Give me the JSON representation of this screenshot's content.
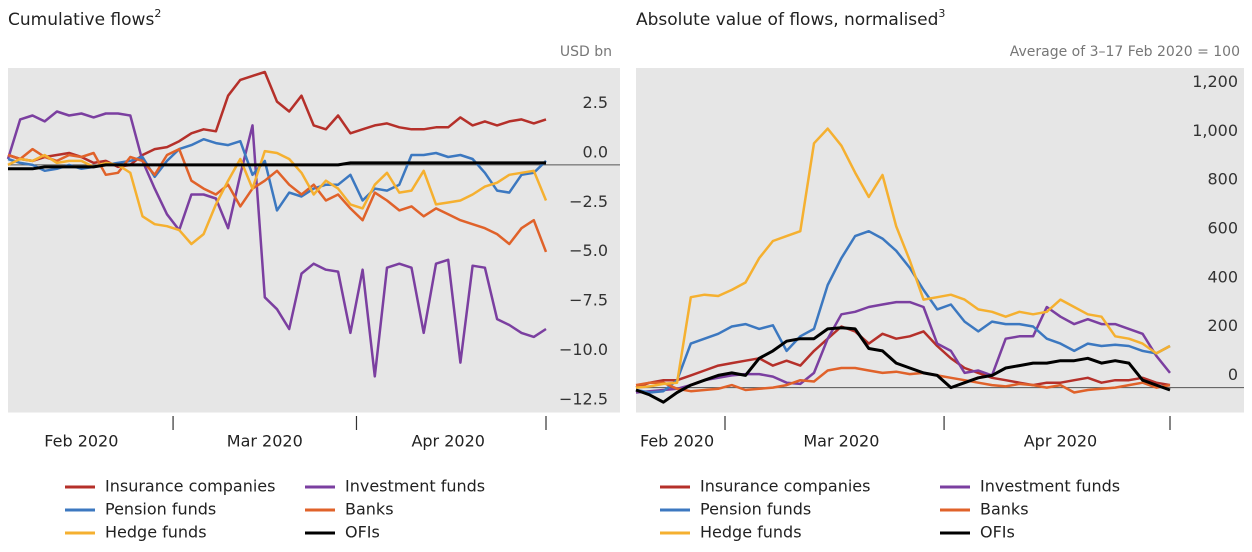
{
  "chart_data": [
    {
      "type": "line",
      "title": "Cumulative flows",
      "title_note": "2",
      "unit": "USD bn",
      "categories": [
        null,
        null,
        null,
        null,
        null,
        null,
        "Feb 2020",
        null,
        null,
        null,
        null,
        null,
        null,
        null,
        null,
        null,
        null,
        null,
        null,
        null,
        null,
        "Mar 2020",
        null,
        null,
        null,
        null,
        null,
        null,
        null,
        null,
        null,
        null,
        null,
        null,
        null,
        null,
        "Apr 2020",
        null,
        null,
        null,
        null,
        null,
        null,
        null,
        null
      ],
      "ylim": [
        -12.5,
        4.8
      ],
      "yticks": [
        {
          "value": -12.5,
          "label": "−12.5"
        },
        {
          "value": -10,
          "label": "−10.0"
        },
        {
          "value": -7.5,
          "label": "−7.5"
        },
        {
          "value": -5,
          "label": "−5.0"
        },
        {
          "value": -2.5,
          "label": "−2.5"
        },
        {
          "value": 0,
          "label": "0.0"
        },
        2.5
      ],
      "zero_line": true,
      "series": [
        {
          "name": "Insurance companies",
          "color": "#b5302a",
          "values": [
            0.5,
            0.3,
            0.2,
            0.4,
            0.5,
            0.6,
            0.4,
            0.1,
            0.2,
            -0.1,
            0.0,
            0.5,
            0.8,
            0.9,
            1.2,
            1.6,
            1.8,
            1.7,
            3.5,
            4.3,
            4.5,
            4.7,
            3.2,
            2.7,
            3.5,
            2.0,
            1.8,
            2.5,
            1.6,
            1.8,
            2.0,
            2.1,
            1.9,
            1.8,
            1.8,
            1.9,
            1.9,
            2.4,
            2.0,
            2.2,
            2.0,
            2.2,
            2.3,
            2.1,
            2.3
          ]
        },
        {
          "name": "Investment funds",
          "color": "#7b3fa0",
          "values": [
            0.3,
            2.3,
            2.5,
            2.2,
            2.7,
            2.5,
            2.6,
            2.4,
            2.6,
            2.6,
            2.5,
            0.2,
            -1.2,
            -2.5,
            -3.3,
            -1.5,
            -1.5,
            -1.7,
            -3.2,
            -0.5,
            2.0,
            -6.7,
            -7.3,
            -8.3,
            -5.5,
            -5.0,
            -5.3,
            -5.4,
            -8.5,
            -5.3,
            -10.7,
            -5.2,
            -5.0,
            -5.2,
            -8.5,
            -5.0,
            -4.8,
            -10.0,
            -5.1,
            -5.2,
            -7.8,
            -8.1,
            -8.5,
            -8.7,
            -8.3
          ]
        },
        {
          "name": "Pension funds",
          "color": "#3c78c0",
          "values": [
            0.3,
            0.1,
            0.0,
            -0.3,
            -0.2,
            0.0,
            -0.2,
            -0.1,
            0.0,
            0.1,
            0.2,
            0.4,
            -0.6,
            0.2,
            0.8,
            1.0,
            1.3,
            1.1,
            1.0,
            1.2,
            -0.5,
            0.2,
            -2.3,
            -1.4,
            -1.6,
            -1.2,
            -1.0,
            -1.0,
            -0.5,
            -1.8,
            -1.2,
            -1.3,
            -1.0,
            0.5,
            0.5,
            0.6,
            0.4,
            0.5,
            0.3,
            -0.4,
            -1.3,
            -1.4,
            -0.5,
            -0.4,
            0.2
          ]
        },
        {
          "name": "Banks",
          "color": "#e0622a",
          "values": [
            0.5,
            0.3,
            0.8,
            0.4,
            0.2,
            0.5,
            0.4,
            0.6,
            -0.5,
            -0.4,
            0.4,
            0.2,
            -0.5,
            0.5,
            0.8,
            -0.8,
            -1.2,
            -1.5,
            -1.0,
            -2.1,
            -1.2,
            -0.8,
            -0.3,
            -1.0,
            -1.5,
            -1.0,
            -1.8,
            -1.5,
            -2.2,
            -2.8,
            -1.4,
            -1.8,
            -2.3,
            -2.1,
            -2.6,
            -2.2,
            -2.5,
            -2.8,
            -3.0,
            -3.2,
            -3.5,
            -4.0,
            -3.2,
            -2.8,
            -4.4
          ]
        },
        {
          "name": "Hedge funds",
          "color": "#f5b030",
          "values": [
            0.0,
            0.3,
            0.2,
            0.5,
            0.1,
            0.2,
            0.2,
            -0.1,
            0.1,
            0.0,
            -0.4,
            -2.6,
            -3.0,
            -3.1,
            -3.3,
            -4.0,
            -3.5,
            -2.0,
            -0.8,
            0.3,
            -1.2,
            0.7,
            0.6,
            0.3,
            -0.4,
            -1.5,
            -0.8,
            -1.2,
            -2.0,
            -2.2,
            -1.0,
            -0.4,
            -1.4,
            -1.3,
            -0.3,
            -2.0,
            -1.9,
            -1.8,
            -1.5,
            -1.1,
            -0.9,
            -0.5,
            -0.4,
            -0.3,
            -1.8
          ]
        },
        {
          "name": "OFIs",
          "color": "#000000",
          "values": [
            -0.2,
            -0.2,
            -0.2,
            -0.1,
            -0.1,
            -0.1,
            -0.1,
            -0.1,
            0.0,
            0.0,
            0.0,
            0.0,
            0.0,
            0.0,
            0.0,
            0.0,
            0.0,
            0.0,
            0.0,
            0.0,
            0.0,
            0.0,
            0.0,
            0.0,
            0.0,
            0.0,
            0.0,
            0.0,
            0.1,
            0.1,
            0.1,
            0.1,
            0.1,
            0.1,
            0.1,
            0.1,
            0.1,
            0.1,
            0.1,
            0.1,
            0.1,
            0.1,
            0.1,
            0.1,
            0.1
          ]
        }
      ]
    },
    {
      "type": "line",
      "title": "Absolute value of flows, normalised",
      "title_note": "3",
      "unit": "Average of 3–17 Feb 2020 = 100",
      "categories": [
        null,
        null,
        null,
        "Feb 2020",
        null,
        null,
        null,
        null,
        null,
        null,
        null,
        null,
        null,
        null,
        null,
        "Mar 2020",
        null,
        null,
        null,
        null,
        null,
        null,
        null,
        null,
        null,
        null,
        null,
        null,
        null,
        null,
        null,
        "Apr 2020",
        null,
        null,
        null,
        null,
        null,
        null,
        null,
        null
      ],
      "ylim": [
        -100,
        1300
      ],
      "yticks": [
        0,
        200,
        400,
        600,
        800,
        {
          "value": 1000,
          "label": "1,000"
        },
        {
          "value": 1200,
          "label": "1,200"
        }
      ],
      "zero_line": true,
      "series": [
        {
          "name": "Insurance companies",
          "color": "#b5302a",
          "values": [
            0,
            20,
            30,
            30,
            50,
            70,
            90,
            100,
            110,
            120,
            90,
            110,
            90,
            150,
            200,
            250,
            230,
            180,
            220,
            200,
            210,
            230,
            170,
            120,
            80,
            60,
            40,
            30,
            20,
            10,
            20,
            20,
            30,
            40,
            20,
            30,
            30,
            40,
            20,
            10
          ]
        },
        {
          "name": "Investment funds",
          "color": "#7b3fa0",
          "values": [
            -20,
            -15,
            -10,
            -5,
            10,
            30,
            40,
            50,
            55,
            55,
            45,
            20,
            15,
            60,
            200,
            300,
            310,
            330,
            340,
            350,
            350,
            330,
            180,
            150,
            60,
            70,
            50,
            200,
            210,
            210,
            330,
            290,
            260,
            280,
            260,
            260,
            240,
            220,
            130,
            60
          ]
        },
        {
          "name": "Pension funds",
          "color": "#3c78c0",
          "values": [
            -10,
            -20,
            -15,
            30,
            180,
            200,
            220,
            250,
            260,
            240,
            255,
            150,
            210,
            240,
            420,
            530,
            620,
            640,
            610,
            560,
            490,
            400,
            320,
            340,
            270,
            230,
            270,
            260,
            260,
            250,
            200,
            180,
            150,
            180,
            170,
            175,
            170,
            150,
            140,
            170
          ]
        },
        {
          "name": "Banks",
          "color": "#e0622a",
          "values": [
            10,
            20,
            20,
            -5,
            -15,
            -10,
            -5,
            10,
            -10,
            -5,
            0,
            10,
            30,
            25,
            70,
            80,
            80,
            70,
            60,
            65,
            55,
            60,
            50,
            40,
            30,
            20,
            10,
            5,
            15,
            10,
            0,
            10,
            -20,
            -10,
            -5,
            0,
            10,
            20,
            0,
            10
          ]
        },
        {
          "name": "Hedge funds",
          "color": "#f5b030",
          "values": [
            0,
            5,
            15,
            20,
            370,
            380,
            375,
            400,
            430,
            530,
            600,
            620,
            640,
            1000,
            1060,
            990,
            880,
            780,
            870,
            660,
            520,
            360,
            370,
            380,
            360,
            320,
            310,
            290,
            310,
            300,
            310,
            360,
            330,
            300,
            290,
            210,
            200,
            180,
            140,
            170
          ]
        },
        {
          "name": "OFIs",
          "color": "#000000",
          "values": [
            -10,
            -30,
            -60,
            -20,
            10,
            30,
            50,
            60,
            50,
            120,
            150,
            190,
            200,
            200,
            240,
            245,
            240,
            160,
            150,
            100,
            80,
            60,
            50,
            0,
            20,
            40,
            50,
            80,
            90,
            100,
            100,
            110,
            110,
            120,
            100,
            110,
            100,
            30,
            10,
            -10
          ]
        }
      ]
    }
  ]
}
